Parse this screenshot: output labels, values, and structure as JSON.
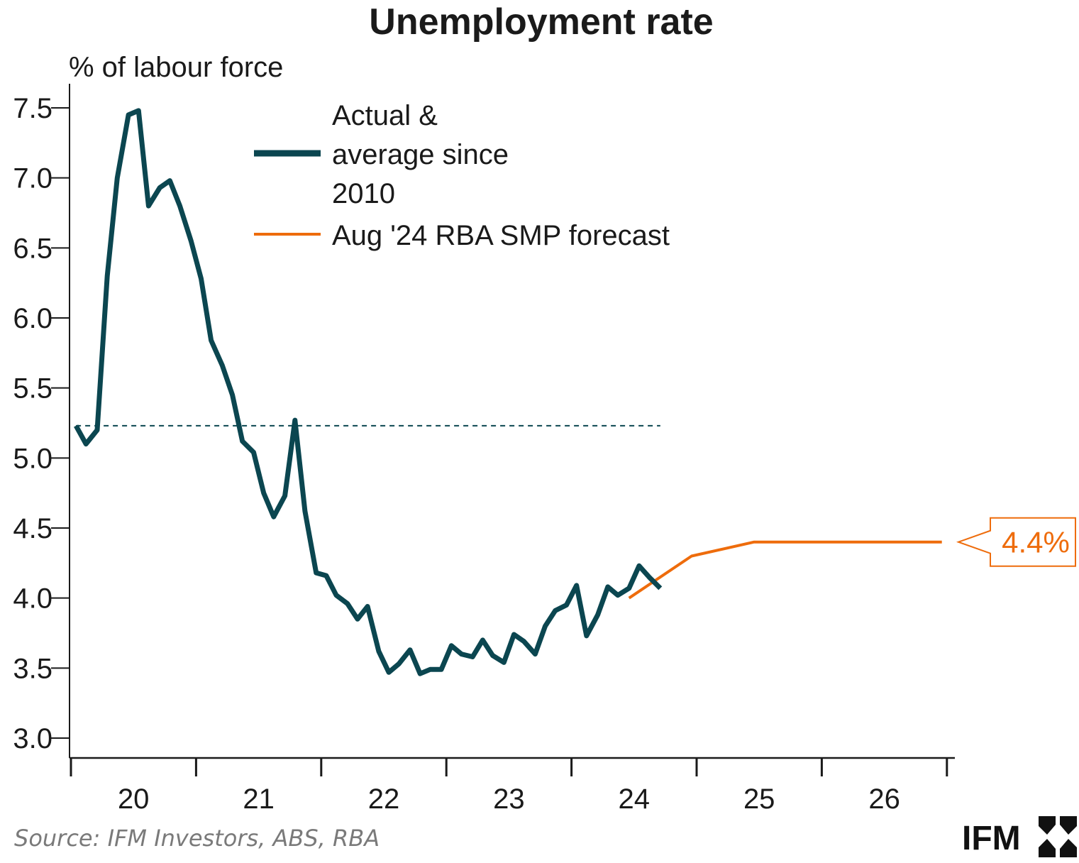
{
  "brand": {
    "name": "IFM"
  },
  "source": "Source: IFM Investors, ABS, RBA",
  "colors": {
    "actual": "#0b4650",
    "forecast": "#ee6c0c",
    "axis": "#1a1a1a"
  },
  "chart_data": {
    "type": "line",
    "title": "Unemployment rate",
    "ylabel": "% of labour force",
    "xlabel": "",
    "ylim": [
      3.0,
      7.5
    ],
    "xlim": [
      2019.97,
      2027.0
    ],
    "yticks": [
      3.0,
      3.5,
      4.0,
      4.5,
      5.0,
      5.5,
      6.0,
      6.5,
      7.0,
      7.5
    ],
    "ytick_labels": [
      "3.0",
      "3.5",
      "4.0",
      "4.5",
      "5.0",
      "5.5",
      "6.0",
      "6.5",
      "7.0",
      "7.5"
    ],
    "xtick_positions": [
      2020,
      2021,
      2022,
      2023,
      2024,
      2025,
      2026,
      2027
    ],
    "xtick_labels": [
      "20",
      "21",
      "22",
      "23",
      "24",
      "25",
      "26"
    ],
    "series": [
      {
        "name": "Actual & average since 2010",
        "legend_lines": [
          "Actual &",
          "average since",
          "2010"
        ],
        "style": "thick",
        "color": "#0b4650",
        "x": [
          2020.04,
          2020.12,
          2020.21,
          2020.29,
          2020.37,
          2020.46,
          2020.54,
          2020.62,
          2020.71,
          2020.79,
          2020.87,
          2020.96,
          2021.04,
          2021.12,
          2021.21,
          2021.29,
          2021.37,
          2021.46,
          2021.54,
          2021.62,
          2021.71,
          2021.79,
          2021.87,
          2021.96,
          2022.04,
          2022.12,
          2022.21,
          2022.29,
          2022.37,
          2022.46,
          2022.54,
          2022.62,
          2022.71,
          2022.79,
          2022.87,
          2022.96,
          2023.04,
          2023.12,
          2023.21,
          2023.29,
          2023.37,
          2023.46,
          2023.54,
          2023.62,
          2023.71,
          2023.79,
          2023.87,
          2023.96,
          2024.04,
          2024.12,
          2024.21,
          2024.29,
          2024.37,
          2024.46,
          2024.54,
          2024.62,
          2024.71
        ],
        "y": [
          5.23,
          5.1,
          5.2,
          6.3,
          7.0,
          7.45,
          7.48,
          6.8,
          6.93,
          6.98,
          6.8,
          6.55,
          6.28,
          5.84,
          5.66,
          5.45,
          5.12,
          5.04,
          4.75,
          4.58,
          4.73,
          5.27,
          4.62,
          4.18,
          4.16,
          4.02,
          3.96,
          3.85,
          3.94,
          3.62,
          3.47,
          3.53,
          3.63,
          3.46,
          3.49,
          3.49,
          3.66,
          3.6,
          3.58,
          3.7,
          3.59,
          3.54,
          3.74,
          3.69,
          3.6,
          3.8,
          3.91,
          3.95,
          4.09,
          3.73,
          3.88,
          4.08,
          4.02,
          4.07,
          4.23,
          4.15,
          4.07
        ]
      },
      {
        "name": "Aug '24 RBA SMP forecast",
        "legend_lines": [
          "Aug '24 RBA SMP forecast"
        ],
        "style": "thin",
        "color": "#ee6c0c",
        "x": [
          2024.46,
          2024.96,
          2025.46,
          2026.96
        ],
        "y": [
          4.0,
          4.3,
          4.4,
          4.4
        ]
      },
      {
        "name": "Average since 2010",
        "style": "dashed",
        "color": "#0b4650",
        "x": [
          2020.04,
          2024.71
        ],
        "y": [
          5.23,
          5.23
        ]
      }
    ],
    "annotations": [
      {
        "text": "4.4%",
        "value": 4.4,
        "color": "#ee6c0c"
      }
    ]
  }
}
